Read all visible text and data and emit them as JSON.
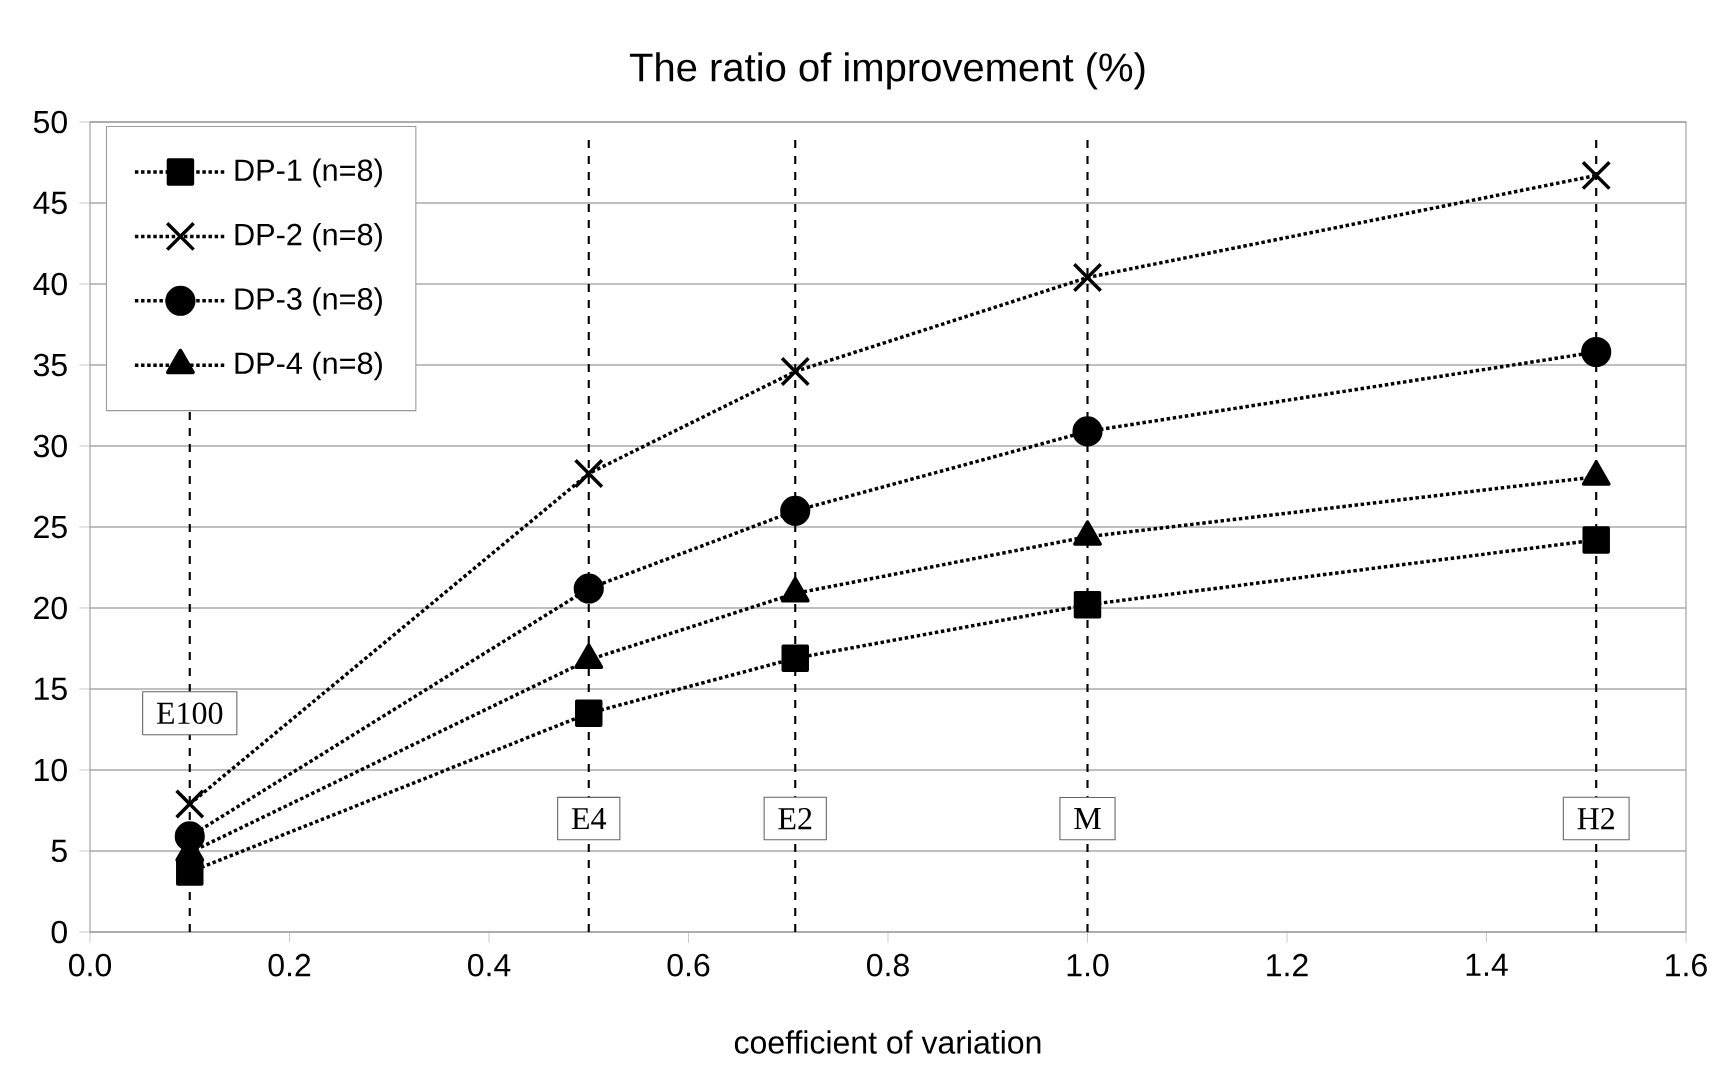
{
  "chart_data": {
    "type": "line",
    "title": "The ratio of improvement (%)",
    "xlabel": "coefficient of variation",
    "xlim": [
      0,
      1.6
    ],
    "ylim": [
      0,
      50
    ],
    "xticks": [
      {
        "value": 0,
        "label": "0.0"
      },
      {
        "value": 0.2,
        "label": "0.2"
      },
      {
        "value": 0.4,
        "label": "0.4"
      },
      {
        "value": 0.6,
        "label": "0.6"
      },
      {
        "value": 0.8,
        "label": "0.8"
      },
      {
        "value": 1.0,
        "label": "1.0"
      },
      {
        "value": 1.2,
        "label": "1.2"
      },
      {
        "value": 1.4,
        "label": "1.4"
      },
      {
        "value": 1.6,
        "label": "1.6"
      }
    ],
    "yticks": [
      0,
      5,
      10,
      15,
      20,
      25,
      30,
      35,
      40,
      45,
      50
    ],
    "x": [
      0.1,
      0.5,
      0.707,
      1.0,
      1.51
    ],
    "series": [
      {
        "name": "DP-1 (n=8)",
        "color": "#000000",
        "marker": "square",
        "values": [
          3.7,
          13.5,
          16.9,
          20.2,
          24.2
        ]
      },
      {
        "name": "DP-2 (n=8)",
        "color": "#000000",
        "marker": "cross",
        "values": [
          7.9,
          28.3,
          34.6,
          40.4,
          46.7
        ]
      },
      {
        "name": "DP-3 (n=8)",
        "color": "#000000",
        "marker": "circle",
        "values": [
          5.9,
          21.2,
          26.0,
          30.9,
          35.8
        ]
      },
      {
        "name": "DP-4 (n=8)",
        "color": "#000000",
        "marker": "triangle",
        "values": [
          4.9,
          16.8,
          20.9,
          24.4,
          28.1
        ]
      }
    ],
    "ref_lines": [
      {
        "axis": "x",
        "value": 0.1,
        "label": "E100",
        "line_style": "dashed"
      },
      {
        "axis": "x",
        "value": 0.5,
        "label": "E4",
        "line_style": "dashed"
      },
      {
        "axis": "x",
        "value": 0.707,
        "label": "E2",
        "line_style": "dashed"
      },
      {
        "axis": "x",
        "value": 1.0,
        "label": "M",
        "line_style": "dashed"
      },
      {
        "axis": "x",
        "value": 1.51,
        "label": "H2",
        "line_style": "dashed"
      }
    ],
    "line_style": "dotted",
    "grid": "y",
    "legend": "top left"
  }
}
